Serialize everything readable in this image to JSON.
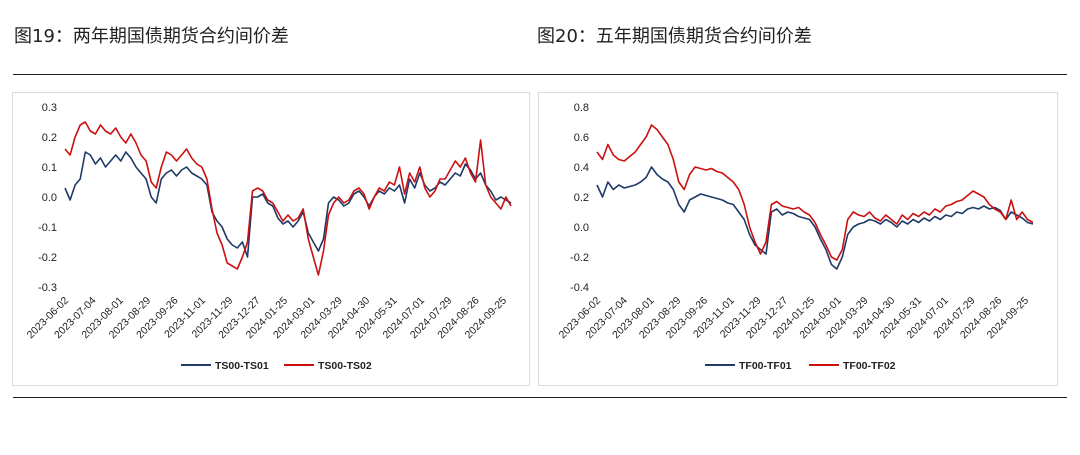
{
  "figures": [
    {
      "title": "图19：两年期国债期货合约间价差"
    },
    {
      "title": "图20：五年期国债期货合约间价差"
    }
  ],
  "chart_data": [
    {
      "type": "line",
      "ylim": [
        -0.3,
        0.3
      ],
      "yticks": [
        "0.3",
        "0.2",
        "0.1",
        "0.0",
        "-0.1",
        "-0.2",
        "-0.3"
      ],
      "ytick_values": [
        0.3,
        0.2,
        0.1,
        0.0,
        -0.1,
        -0.2,
        -0.3
      ],
      "xticks": [
        "2023-06-02",
        "2023-07-04",
        "2023-08-01",
        "2023-08-29",
        "2023-09-26",
        "2023-11-01",
        "2023-11-29",
        "2023-12-27",
        "2024-01-25",
        "2024-03-01",
        "2024-03-29",
        "2024-04-30",
        "2024-05-31",
        "2024-07-01",
        "2024-07-29",
        "2024-08-26",
        "2024-09-25"
      ],
      "legend_position": "bottom",
      "grid": false,
      "series": [
        {
          "name": "TS00-TS01",
          "color": "#1f3a68",
          "values": [
            0.03,
            -0.01,
            0.04,
            0.06,
            0.15,
            0.14,
            0.11,
            0.13,
            0.1,
            0.12,
            0.14,
            0.12,
            0.15,
            0.13,
            0.1,
            0.08,
            0.06,
            0.0,
            -0.02,
            0.06,
            0.08,
            0.09,
            0.07,
            0.09,
            0.1,
            0.08,
            0.07,
            0.06,
            0.04,
            -0.05,
            -0.08,
            -0.1,
            -0.14,
            -0.16,
            -0.17,
            -0.15,
            -0.2,
            0.0,
            0.0,
            0.01,
            -0.02,
            -0.03,
            -0.07,
            -0.09,
            -0.08,
            -0.1,
            -0.08,
            -0.05,
            -0.12,
            -0.15,
            -0.18,
            -0.14,
            -0.02,
            0.0,
            -0.01,
            -0.03,
            -0.02,
            0.01,
            0.02,
            0.0,
            -0.03,
            0.0,
            0.02,
            0.01,
            0.03,
            0.02,
            0.04,
            -0.02,
            0.06,
            0.03,
            0.08,
            0.04,
            0.02,
            0.03,
            0.05,
            0.04,
            0.06,
            0.08,
            0.07,
            0.11,
            0.09,
            0.06,
            0.08,
            0.04,
            0.02,
            -0.01,
            0.0,
            -0.01,
            -0.02
          ]
        },
        {
          "name": "TS00-TS02",
          "color": "#cc1010",
          "values": [
            0.16,
            0.14,
            0.2,
            0.24,
            0.25,
            0.22,
            0.21,
            0.24,
            0.22,
            0.21,
            0.23,
            0.2,
            0.18,
            0.21,
            0.18,
            0.14,
            0.12,
            0.05,
            0.03,
            0.1,
            0.15,
            0.14,
            0.12,
            0.14,
            0.16,
            0.13,
            0.11,
            0.1,
            0.06,
            -0.04,
            -0.12,
            -0.16,
            -0.22,
            -0.23,
            -0.24,
            -0.2,
            -0.15,
            0.02,
            0.03,
            0.02,
            -0.01,
            -0.02,
            -0.05,
            -0.08,
            -0.06,
            -0.08,
            -0.07,
            -0.04,
            -0.14,
            -0.2,
            -0.26,
            -0.18,
            -0.06,
            -0.02,
            0.0,
            -0.02,
            -0.01,
            0.02,
            0.03,
            0.01,
            -0.04,
            0.0,
            0.03,
            0.02,
            0.05,
            0.04,
            0.1,
            0.01,
            0.08,
            0.05,
            0.1,
            0.03,
            0.0,
            0.02,
            0.06,
            0.06,
            0.09,
            0.12,
            0.1,
            0.13,
            0.08,
            0.05,
            0.19,
            0.04,
            0.0,
            -0.02,
            -0.04,
            0.0,
            -0.03
          ]
        }
      ]
    },
    {
      "type": "line",
      "ylim": [
        -0.4,
        0.8
      ],
      "yticks": [
        "0.8",
        "0.6",
        "0.4",
        "0.2",
        "0.0",
        "-0.2",
        "-0.4"
      ],
      "ytick_values": [
        0.8,
        0.6,
        0.4,
        0.2,
        0.0,
        -0.2,
        -0.4
      ],
      "xticks": [
        "2023-06-02",
        "2023-07-04",
        "2023-08-01",
        "2023-08-29",
        "2023-09-26",
        "2023-11-01",
        "2023-11-29",
        "2023-12-27",
        "2024-01-25",
        "2024-03-01",
        "2024-03-29",
        "2024-04-30",
        "2024-05-31",
        "2024-07-01",
        "2024-07-29",
        "2024-08-26",
        "2024-09-25"
      ],
      "legend_position": "bottom",
      "grid": false,
      "series": [
        {
          "name": "TF00-TF01",
          "color": "#1f3a68",
          "values": [
            0.28,
            0.2,
            0.3,
            0.25,
            0.28,
            0.26,
            0.27,
            0.28,
            0.3,
            0.33,
            0.4,
            0.35,
            0.32,
            0.3,
            0.25,
            0.15,
            0.1,
            0.18,
            0.2,
            0.22,
            0.21,
            0.2,
            0.19,
            0.18,
            0.16,
            0.15,
            0.1,
            0.05,
            -0.05,
            -0.12,
            -0.15,
            -0.18,
            0.1,
            0.12,
            0.08,
            0.1,
            0.09,
            0.07,
            0.06,
            0.05,
            0.0,
            -0.08,
            -0.15,
            -0.25,
            -0.28,
            -0.2,
            -0.05,
            0.0,
            0.02,
            0.03,
            0.05,
            0.04,
            0.02,
            0.05,
            0.03,
            0.0,
            0.04,
            0.02,
            0.05,
            0.03,
            0.06,
            0.04,
            0.07,
            0.05,
            0.08,
            0.07,
            0.1,
            0.09,
            0.12,
            0.13,
            0.12,
            0.14,
            0.12,
            0.13,
            0.11,
            0.05,
            0.1,
            0.08,
            0.06,
            0.03,
            0.02
          ]
        },
        {
          "name": "TF00-TF02",
          "color": "#cc1010",
          "values": [
            0.5,
            0.45,
            0.55,
            0.48,
            0.45,
            0.44,
            0.47,
            0.5,
            0.55,
            0.6,
            0.68,
            0.65,
            0.6,
            0.55,
            0.45,
            0.3,
            0.25,
            0.35,
            0.4,
            0.39,
            0.38,
            0.39,
            0.37,
            0.36,
            0.33,
            0.3,
            0.25,
            0.15,
            0.0,
            -0.1,
            -0.18,
            -0.1,
            0.15,
            0.17,
            0.14,
            0.13,
            0.12,
            0.13,
            0.1,
            0.08,
            0.03,
            -0.05,
            -0.12,
            -0.2,
            -0.22,
            -0.15,
            0.05,
            0.1,
            0.08,
            0.07,
            0.1,
            0.06,
            0.04,
            0.08,
            0.05,
            0.02,
            0.08,
            0.05,
            0.09,
            0.07,
            0.1,
            0.08,
            0.12,
            0.1,
            0.14,
            0.15,
            0.17,
            0.18,
            0.21,
            0.24,
            0.22,
            0.2,
            0.15,
            0.12,
            0.1,
            0.05,
            0.18,
            0.05,
            0.1,
            0.05,
            0.03
          ]
        }
      ]
    }
  ]
}
